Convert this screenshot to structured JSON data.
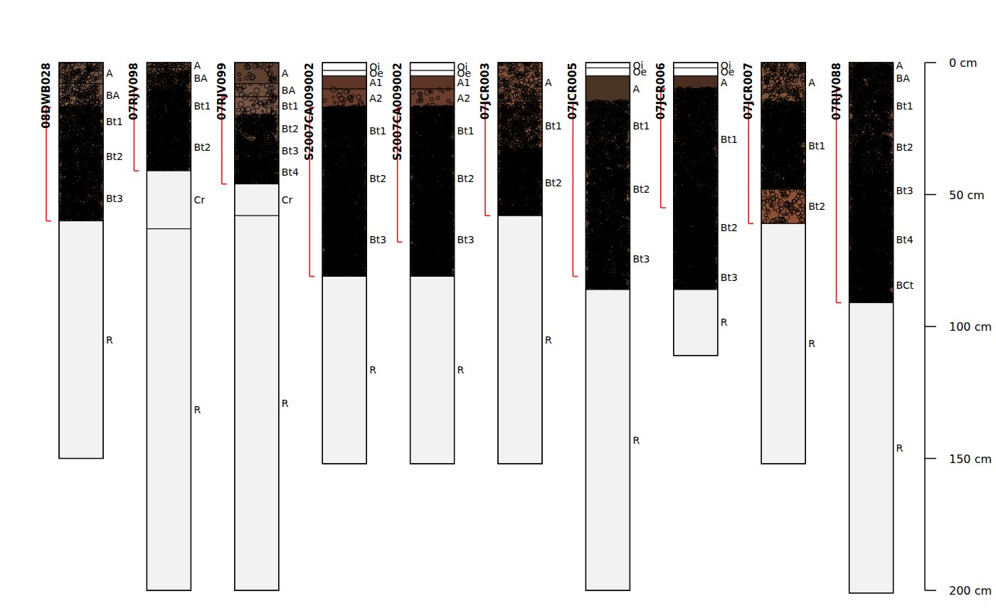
{
  "chart_data": {
    "type": "soil_profiles",
    "ylim": [
      0,
      200
    ],
    "yticks": [
      {
        "value": 0,
        "label": "0 cm"
      },
      {
        "value": 50,
        "label": "50 cm"
      },
      {
        "value": 100,
        "label": "100 cm"
      },
      {
        "value": 150,
        "label": "150 cm"
      },
      {
        "value": 200,
        "label": "200 cm"
      }
    ],
    "profiles": [
      {
        "id": "08DWB028",
        "bracket": {
          "top": 17,
          "bottom": 60
        },
        "horizons": [
          {
            "name": "A",
            "top": 0,
            "bottom": 8,
            "color": "#6b5040",
            "fragments": 8
          },
          {
            "name": "BA",
            "top": 8,
            "bottom": 17,
            "color": "#7a5c48",
            "fragments": 10
          },
          {
            "name": "Bt1",
            "top": 17,
            "bottom": 28,
            "color": "#7f5c45",
            "fragments": 30
          },
          {
            "name": "Bt2",
            "top": 28,
            "bottom": 43,
            "color": "#82603f",
            "fragments": 35
          },
          {
            "name": "Bt3",
            "top": 43,
            "bottom": 60,
            "color": "#8a6244",
            "fragments": 35
          },
          {
            "name": "R",
            "top": 60,
            "bottom": 150,
            "color": "#f2f2f2",
            "fragments": 0
          }
        ]
      },
      {
        "id": "07RJV098",
        "bracket": {
          "top": 10,
          "bottom": 41
        },
        "horizons": [
          {
            "name": "A",
            "top": 0,
            "bottom": 2,
            "color": "#6a4a2e",
            "fragments": 10
          },
          {
            "name": "BA",
            "top": 2,
            "bottom": 10,
            "color": "#8a6238",
            "fragments": 20
          },
          {
            "name": "Bt1",
            "top": 10,
            "bottom": 23,
            "color": "#a2703a",
            "fragments": 40
          },
          {
            "name": "Bt2",
            "top": 23,
            "bottom": 41,
            "color": "#9a6838",
            "fragments": 50
          },
          {
            "name": "Cr",
            "top": 41,
            "bottom": 63,
            "color": "#f2f2f2",
            "fragments": 0
          },
          {
            "name": "R",
            "top": 63,
            "bottom": 200,
            "color": "#f2f2f2",
            "fragments": 0
          }
        ]
      },
      {
        "id": "07RJV099",
        "bracket": {
          "top": 13,
          "bottom": 46
        },
        "horizons": [
          {
            "name": "A",
            "top": 0,
            "bottom": 8,
            "color": "#5c4030",
            "fragments": 2
          },
          {
            "name": "BA",
            "top": 8,
            "bottom": 13,
            "color": "#6e5040",
            "fragments": 3
          },
          {
            "name": "Bt1",
            "top": 13,
            "bottom": 20,
            "color": "#7a5848",
            "fragments": 4
          },
          {
            "name": "Bt2",
            "top": 20,
            "bottom": 30,
            "color": "#70503e",
            "fragments": 25
          },
          {
            "name": "Bt3",
            "top": 30,
            "bottom": 37,
            "color": "#6a4c3a",
            "fragments": 30
          },
          {
            "name": "Bt4",
            "top": 37,
            "bottom": 46,
            "color": "#604434",
            "fragments": 45
          },
          {
            "name": "Cr",
            "top": 46,
            "bottom": 58,
            "color": "#f2f2f2",
            "fragments": 0
          },
          {
            "name": "R",
            "top": 58,
            "bottom": 200,
            "color": "#f2f2f2",
            "fragments": 0
          }
        ]
      },
      {
        "id": "S2007CA009002",
        "bracket": {
          "top": 17,
          "bottom": 81
        },
        "horizons": [
          {
            "name": "Oi",
            "top": 0,
            "bottom": 3,
            "color": "#ffffff",
            "fragments": 0
          },
          {
            "name": "Oe",
            "top": 3,
            "bottom": 5,
            "color": "#ffffff",
            "fragments": 0
          },
          {
            "name": "A1",
            "top": 5,
            "bottom": 10,
            "color": "#5e3628",
            "fragments": 0
          },
          {
            "name": "A2",
            "top": 10,
            "bottom": 17,
            "color": "#6a3e2c",
            "fragments": 2
          },
          {
            "name": "Bt1",
            "top": 17,
            "bottom": 35,
            "color": "#5a3a2c",
            "fragments": 45
          },
          {
            "name": "Bt2",
            "top": 35,
            "bottom": 53,
            "color": "#6a4430",
            "fragments": 45
          },
          {
            "name": "Bt3",
            "top": 53,
            "bottom": 81,
            "color": "#7a5034",
            "fragments": 50
          },
          {
            "name": "R",
            "top": 81,
            "bottom": 152,
            "color": "#f2f2f2",
            "fragments": 0
          }
        ]
      },
      {
        "id": "S2007CA009002",
        "bracket": {
          "top": 17,
          "bottom": 68
        },
        "horizons": [
          {
            "name": "Oi",
            "top": 0,
            "bottom": 3,
            "color": "#ffffff",
            "fragments": 0
          },
          {
            "name": "Oe",
            "top": 3,
            "bottom": 5,
            "color": "#ffffff",
            "fragments": 0
          },
          {
            "name": "A1",
            "top": 5,
            "bottom": 10,
            "color": "#5e3628",
            "fragments": 0
          },
          {
            "name": "A2",
            "top": 10,
            "bottom": 17,
            "color": "#6a3e2c",
            "fragments": 2
          },
          {
            "name": "Bt1",
            "top": 17,
            "bottom": 35,
            "color": "#5a3a2c",
            "fragments": 45
          },
          {
            "name": "Bt2",
            "top": 35,
            "bottom": 53,
            "color": "#6e4630",
            "fragments": 45
          },
          {
            "name": "Bt3",
            "top": 53,
            "bottom": 81,
            "color": "#7a5034",
            "fragments": 50
          },
          {
            "name": "R",
            "top": 81,
            "bottom": 152,
            "color": "#f2f2f2",
            "fragments": 0
          }
        ]
      },
      {
        "id": "07JCR003",
        "bracket": {
          "top": 15,
          "bottom": 58
        },
        "horizons": [
          {
            "name": "A",
            "top": 0,
            "bottom": 15,
            "color": "#7a5038",
            "fragments": 8
          },
          {
            "name": "Bt1",
            "top": 15,
            "bottom": 33,
            "color": "#8a5a34",
            "fragments": 20
          },
          {
            "name": "Bt2",
            "top": 33,
            "bottom": 58,
            "color": "#8e5630",
            "fragments": 45
          },
          {
            "name": "R",
            "top": 58,
            "bottom": 152,
            "color": "#f2f2f2",
            "fragments": 0
          }
        ]
      },
      {
        "id": "07JCR005",
        "bracket": {
          "top": 15,
          "bottom": 81
        },
        "horizons": [
          {
            "name": "Oi",
            "top": 0,
            "bottom": 2,
            "color": "#ffffff",
            "fragments": 0
          },
          {
            "name": "Oe",
            "top": 2,
            "bottom": 5,
            "color": "#ffffff",
            "fragments": 0
          },
          {
            "name": "A",
            "top": 5,
            "bottom": 15,
            "color": "#4a3424",
            "fragments": 0
          },
          {
            "name": "Bt1",
            "top": 15,
            "bottom": 33,
            "color": "#7a5a44",
            "fragments": 30
          },
          {
            "name": "Bt2",
            "top": 33,
            "bottom": 63,
            "color": "#80603c",
            "fragments": 35
          },
          {
            "name": "Bt3",
            "top": 63,
            "bottom": 86,
            "color": "#8a6a3c",
            "fragments": 40
          },
          {
            "name": "R",
            "top": 86,
            "bottom": 200,
            "color": "#f2f2f2",
            "fragments": 0
          }
        ]
      },
      {
        "id": "07JCR006",
        "bracket": {
          "top": 10,
          "bottom": 55
        },
        "horizons": [
          {
            "name": "Oi",
            "top": 0,
            "bottom": 2,
            "color": "#ffffff",
            "fragments": 0
          },
          {
            "name": "Oe",
            "top": 2,
            "bottom": 5,
            "color": "#ffffff",
            "fragments": 0
          },
          {
            "name": "A",
            "top": 5,
            "bottom": 10,
            "color": "#4a2e20",
            "fragments": 0
          },
          {
            "name": "Bt1",
            "top": 10,
            "bottom": 48,
            "color": "#5a3c2c",
            "fragments": 35
          },
          {
            "name": "Bt2",
            "top": 48,
            "bottom": 77,
            "color": "#5c3e2c",
            "fragments": 45
          },
          {
            "name": "Bt3",
            "top": 77,
            "bottom": 86,
            "color": "#5a3c2a",
            "fragments": 45
          },
          {
            "name": "R",
            "top": 86,
            "bottom": 111,
            "color": "#f2f2f2",
            "fragments": 0
          }
        ]
      },
      {
        "id": "07JCR007",
        "bracket": {
          "top": 15,
          "bottom": 61
        },
        "horizons": [
          {
            "name": "A",
            "top": 0,
            "bottom": 15,
            "color": "#7e5438",
            "fragments": 8
          },
          {
            "name": "Bt1",
            "top": 15,
            "bottom": 48,
            "color": "#80583a",
            "fragments": 40
          },
          {
            "name": "Bt2",
            "top": 48,
            "bottom": 61,
            "color": "#8e5234",
            "fragments": 5
          },
          {
            "name": "R",
            "top": 61,
            "bottom": 152,
            "color": "#f2f2f2",
            "fragments": 0
          }
        ]
      },
      {
        "id": "07RJV088",
        "bracket": {
          "top": 10,
          "bottom": 91
        },
        "horizons": [
          {
            "name": "A",
            "top": 0,
            "bottom": 2,
            "color": "#5a3a2a",
            "fragments": 20
          },
          {
            "name": "BA",
            "top": 2,
            "bottom": 10,
            "color": "#6e4838",
            "fragments": 30
          },
          {
            "name": "Bt1",
            "top": 10,
            "bottom": 23,
            "color": "#7a5040",
            "fragments": 30
          },
          {
            "name": "Bt2",
            "top": 23,
            "bottom": 41,
            "color": "#7e5646",
            "fragments": 30
          },
          {
            "name": "Bt3",
            "top": 41,
            "bottom": 56,
            "color": "#8a5240",
            "fragments": 45
          },
          {
            "name": "Bt4",
            "top": 56,
            "bottom": 78,
            "color": "#7e5038",
            "fragments": 50
          },
          {
            "name": "BCt",
            "top": 78,
            "bottom": 91,
            "color": "#7a4e36",
            "fragments": 50
          },
          {
            "name": "R",
            "top": 91,
            "bottom": 201,
            "color": "#f2f2f2",
            "fragments": 0
          }
        ]
      }
    ]
  }
}
